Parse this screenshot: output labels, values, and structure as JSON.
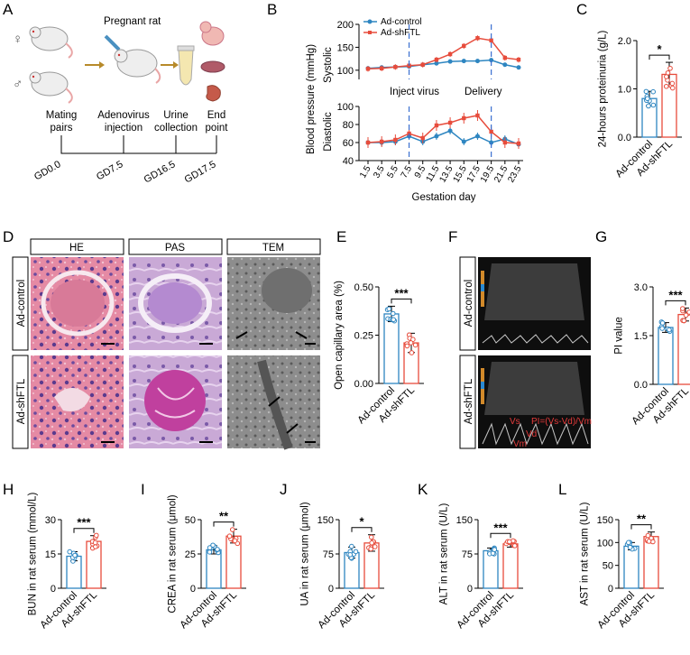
{
  "panels": [
    "A",
    "B",
    "C",
    "D",
    "E",
    "F",
    "G",
    "H",
    "I",
    "J",
    "K",
    "L"
  ],
  "colors": {
    "control": "#2e86c1",
    "shftl": "#e74c3c",
    "microscope": "#d05a7a"
  },
  "panelA": {
    "title": "Pregnant rat",
    "female": "♀",
    "male": "♂",
    "stages": [
      "Mating\npairs",
      "Adenovirus\ninjection",
      "Urine\ncollection",
      "End\npoint"
    ],
    "days": [
      "GD0.0",
      "GD7.5",
      "GD16.5",
      "GD17.5"
    ]
  },
  "panelB": {
    "xlabel": "Gestation day",
    "ylabel_main": "Blood pressure (mmHg)",
    "ylabel_top": "Systolic",
    "ylabel_bottom": "Diastolic",
    "annot_inject": "Inject virus",
    "annot_delivery": "Delivery",
    "legend": [
      "Ad-control",
      "Ad-shFTL"
    ],
    "x": [
      "1.5",
      "3.5",
      "5.5",
      "7.5",
      "9.5",
      "11.5",
      "13.5",
      "15.5",
      "17.5",
      "19.5",
      "21.5",
      "23.5"
    ],
    "systolic": {
      "yticks": [
        100,
        150,
        200
      ],
      "ylim": [
        80,
        200
      ],
      "control": [
        104,
        106,
        107,
        108,
        112,
        115,
        119,
        120,
        120,
        122,
        112,
        106
      ],
      "shftl": [
        103,
        104,
        107,
        110,
        112,
        123,
        135,
        153,
        170,
        165,
        127,
        123
      ]
    },
    "diastolic": {
      "yticks": [
        40,
        60,
        80,
        100
      ],
      "ylim": [
        40,
        100
      ],
      "control": [
        60,
        60,
        61,
        67,
        61,
        67,
        73,
        61,
        67,
        60,
        64,
        58
      ],
      "shftl": [
        60,
        61,
        63,
        70,
        65,
        79,
        82,
        87,
        90,
        72,
        60,
        59
      ]
    }
  },
  "chart_data": [
    {
      "id": "C",
      "type": "bar",
      "ylabel": "24-hours proteinuria (g/L)",
      "yticks": [
        "0.0",
        "1.0",
        "2.0"
      ],
      "ylim": [
        0,
        2.0
      ],
      "categories": [
        "Ad-control",
        "Ad-shFTL"
      ],
      "values": [
        0.8,
        1.3
      ],
      "errors": [
        0.15,
        0.25
      ],
      "sig": "*"
    },
    {
      "id": "E",
      "type": "bar",
      "ylabel": "Open capillary area (%)",
      "yticks": [
        "0.00",
        "0.25",
        "0.50"
      ],
      "ylim": [
        0,
        0.5
      ],
      "categories": [
        "Ad-control",
        "Ad-shFTL"
      ],
      "values": [
        0.36,
        0.21
      ],
      "errors": [
        0.04,
        0.05
      ],
      "sig": "***"
    },
    {
      "id": "G",
      "type": "bar",
      "ylabel": "PI value",
      "yticks": [
        "0.0",
        "1.5",
        "3.0"
      ],
      "ylim": [
        0,
        3.0
      ],
      "categories": [
        "Ad-control",
        "Ad-shFTL"
      ],
      "values": [
        1.75,
        2.15
      ],
      "errors": [
        0.15,
        0.2
      ],
      "sig": "***"
    },
    {
      "id": "H",
      "type": "bar",
      "ylabel": "BUN in rat serum (mmol/L)",
      "yticks": [
        "0",
        "15",
        "30"
      ],
      "ylim": [
        0,
        30
      ],
      "categories": [
        "Ad-control",
        "Ad-shFTL"
      ],
      "values": [
        14,
        20.5
      ],
      "errors": [
        2,
        2.5
      ],
      "sig": "***"
    },
    {
      "id": "I",
      "type": "bar",
      "ylabel": "CREA in rat serum (μmol)",
      "yticks": [
        "0",
        "25",
        "50"
      ],
      "ylim": [
        0,
        50
      ],
      "categories": [
        "Ad-control",
        "Ad-shFTL"
      ],
      "values": [
        28,
        38
      ],
      "errors": [
        3,
        5
      ],
      "sig": "**"
    },
    {
      "id": "J",
      "type": "bar",
      "ylabel": "UA in rat serum (μmol)",
      "yticks": [
        "0",
        "75",
        "150"
      ],
      "ylim": [
        0,
        150
      ],
      "categories": [
        "Ad-control",
        "Ad-shFTL"
      ],
      "values": [
        78,
        99
      ],
      "errors": [
        12,
        18
      ],
      "sig": "*"
    },
    {
      "id": "K",
      "type": "bar",
      "ylabel": "ALT in rat serum (U/L)",
      "yticks": [
        "0",
        "75",
        "150"
      ],
      "ylim": [
        0,
        150
      ],
      "categories": [
        "Ad-control",
        "Ad-shFTL"
      ],
      "values": [
        82,
        97
      ],
      "errors": [
        6,
        7
      ],
      "sig": "***"
    },
    {
      "id": "L",
      "type": "bar",
      "ylabel": "AST in rat serum (U/L)",
      "yticks": [
        "0",
        "50",
        "100",
        "150"
      ],
      "ylim": [
        0,
        150
      ],
      "categories": [
        "Ad-control",
        "Ad-shFTL"
      ],
      "values": [
        92,
        113
      ],
      "errors": [
        8,
        10
      ],
      "sig": "**"
    }
  ],
  "panelD": {
    "cols": [
      "HE",
      "PAS",
      "TEM"
    ],
    "rows": [
      "Ad-control",
      "Ad-shFTL"
    ]
  },
  "panelF": {
    "rows": [
      "Ad-control",
      "Ad-shFTL"
    ],
    "formula": "PI=(Vs-Vd)/Vm",
    "vs": "Vs",
    "vd": "Vd",
    "vm": "Vm"
  }
}
